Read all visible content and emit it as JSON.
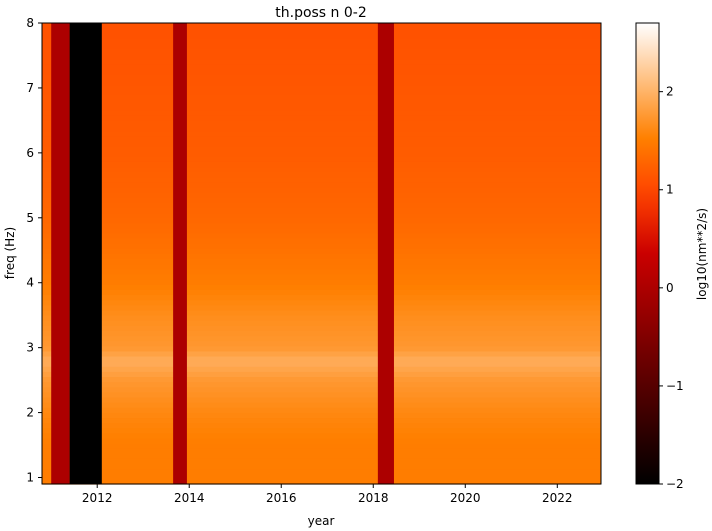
{
  "chart_data": {
    "type": "heatmap",
    "title": "th.poss n 0-2",
    "xlabel": "year",
    "ylabel": "freq (Hz)",
    "xlim": [
      2010.8,
      2022.95
    ],
    "ylim": [
      0.9,
      8.0
    ],
    "xticks": [
      2012,
      2014,
      2016,
      2018,
      2020,
      2022
    ],
    "yticks": [
      1,
      2,
      3,
      4,
      5,
      6,
      7,
      8
    ],
    "colorbar": {
      "label": "log10(nm**2/s)",
      "range": [
        -2,
        2.7
      ],
      "ticks": [
        2,
        1,
        0,
        -1,
        -2
      ],
      "tick_labels": [
        "2",
        "1",
        "0",
        "−1",
        "−2"
      ],
      "colormap": "gist_heat"
    },
    "time_bands": [
      {
        "start": 2011.0,
        "end": 2011.4,
        "value": 0.0
      },
      {
        "start": 2011.4,
        "end": 2012.1,
        "value": -2.0
      },
      {
        "start": 2013.65,
        "end": 2013.95,
        "value": 0.0
      },
      {
        "start": 2018.1,
        "end": 2018.45,
        "value": 0.0
      }
    ],
    "background_profile": {
      "freq": [
        0.9,
        1.5,
        2.0,
        2.5,
        2.8,
        3.0,
        3.5,
        4.0,
        4.5,
        5.0,
        6.0,
        7.0,
        8.0
      ],
      "value": [
        1.5,
        1.5,
        1.6,
        1.75,
        1.95,
        1.75,
        1.65,
        1.5,
        1.4,
        1.3,
        1.2,
        1.15,
        1.1
      ]
    }
  }
}
